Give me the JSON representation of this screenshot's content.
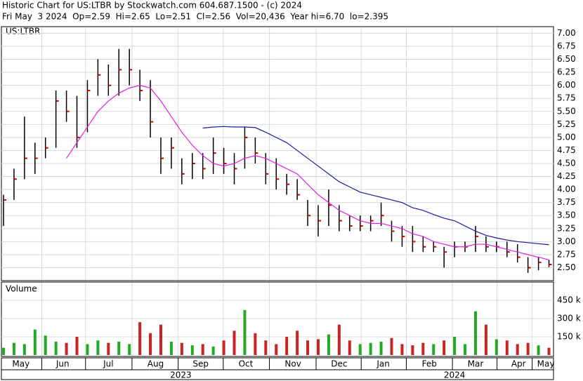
{
  "chart_data": {
    "type": "ohlc",
    "title": "Historic Chart for US:LTBR by Stockwatch.com 604.687.1500 - (c) 2024",
    "subtitle": "Fri May  3 2024  Op=2.59  Hi=2.65  Lo=2.51  Cl=2.56  Vol=20,436  Year hi=6.70  lo=2.395",
    "symbol": "US:LTBR",
    "volume_label": "Volume",
    "x": [
      0,
      1,
      2,
      3,
      4,
      5,
      6,
      7,
      8,
      9,
      10,
      11,
      12,
      13,
      14,
      15,
      16,
      17,
      18,
      19,
      20,
      21,
      22,
      23,
      24,
      25,
      26,
      27,
      28,
      29,
      30,
      31,
      32,
      33,
      34,
      35,
      36,
      37,
      38,
      39,
      40,
      41,
      42,
      43,
      44,
      45,
      46,
      47,
      48,
      49,
      50,
      51,
      52
    ],
    "xlim": [
      -0.2,
      52.3
    ],
    "xticks": [
      {
        "value": 1.66,
        "label": "May"
      },
      {
        "value": 5.64,
        "label": "Jun"
      },
      {
        "value": 10.0,
        "label": "Jul"
      },
      {
        "value": 14.5,
        "label": "Aug"
      },
      {
        "value": 18.8,
        "label": "Sep"
      },
      {
        "value": 23.1,
        "label": "Oct"
      },
      {
        "value": 27.6,
        "label": "Nov"
      },
      {
        "value": 32.0,
        "label": "Dec"
      },
      {
        "value": 36.2,
        "label": "Jan"
      },
      {
        "value": 40.6,
        "label": "Feb"
      },
      {
        "value": 45.0,
        "label": "Mar"
      },
      {
        "value": 49.1,
        "label": "Apr"
      },
      {
        "value": 51.7,
        "label": "May"
      }
    ],
    "years": [
      {
        "value": 16.9,
        "label": "2023"
      },
      {
        "value": 43.0,
        "label": "2024"
      }
    ],
    "high": [
      3.9,
      4.4,
      5.4,
      4.9,
      5.0,
      5.9,
      5.9,
      5.8,
      6.1,
      6.5,
      6.4,
      6.7,
      6.7,
      6.3,
      6.1,
      5.0,
      5.0,
      4.6,
      4.7,
      4.7,
      5.0,
      4.8,
      4.7,
      5.2,
      5.0,
      4.7,
      4.6,
      4.3,
      4.2,
      3.8,
      3.7,
      4.0,
      3.7,
      3.5,
      3.5,
      3.5,
      3.75,
      3.4,
      3.3,
      3.3,
      3.1,
      3.0,
      2.9,
      3.0,
      3.0,
      3.3,
      3.1,
      3.0,
      3.0,
      2.95,
      2.7,
      2.7,
      2.65
    ],
    "low": [
      3.3,
      3.8,
      4.2,
      4.3,
      4.6,
      4.8,
      5.3,
      4.8,
      5.1,
      5.8,
      5.8,
      5.8,
      6.0,
      5.7,
      5.0,
      4.3,
      4.4,
      4.1,
      4.2,
      4.2,
      4.3,
      4.3,
      4.1,
      4.4,
      4.5,
      4.1,
      4.0,
      3.9,
      3.8,
      3.3,
      3.1,
      3.3,
      3.2,
      3.2,
      3.2,
      3.2,
      3.3,
      3.0,
      2.9,
      2.8,
      2.8,
      2.8,
      2.5,
      2.7,
      2.8,
      2.8,
      2.8,
      2.8,
      2.7,
      2.6,
      2.4,
      2.45,
      2.51
    ],
    "close": [
      3.8,
      4.2,
      4.6,
      4.6,
      4.8,
      5.7,
      5.5,
      5.0,
      5.9,
      6.2,
      6.0,
      6.3,
      6.3,
      5.9,
      5.3,
      4.6,
      4.8,
      4.3,
      4.5,
      4.4,
      4.7,
      4.5,
      4.4,
      5.0,
      4.7,
      4.3,
      4.2,
      4.1,
      3.9,
      3.5,
      3.4,
      3.7,
      3.4,
      3.3,
      3.3,
      3.4,
      3.5,
      3.2,
      3.1,
      3.0,
      2.9,
      2.9,
      2.8,
      2.9,
      2.9,
      3.1,
      2.9,
      2.9,
      2.8,
      2.7,
      2.5,
      2.6,
      2.56
    ],
    "volume": [
      60000,
      100000,
      90000,
      210000,
      160000,
      110000,
      100000,
      150000,
      90000,
      120000,
      100000,
      110000,
      90000,
      270000,
      180000,
      250000,
      110000,
      100000,
      80000,
      90000,
      70000,
      120000,
      200000,
      370000,
      180000,
      120000,
      90000,
      150000,
      200000,
      120000,
      130000,
      170000,
      250000,
      120000,
      90000,
      100000,
      110000,
      140000,
      90000,
      80000,
      100000,
      90000,
      120000,
      150000,
      90000,
      360000,
      250000,
      130000,
      120000,
      90000,
      100000,
      80000,
      60000
    ],
    "ma_series": [
      {
        "name": "20-day",
        "color": "#e020e0",
        "values": [
          null,
          null,
          null,
          null,
          null,
          null,
          4.6,
          4.9,
          5.2,
          5.5,
          5.7,
          5.85,
          5.95,
          6.0,
          5.95,
          5.7,
          5.4,
          5.1,
          4.85,
          4.65,
          4.5,
          4.45,
          4.5,
          4.6,
          4.65,
          4.6,
          4.5,
          4.4,
          4.3,
          4.1,
          3.9,
          3.75,
          3.6,
          3.5,
          3.4,
          3.35,
          3.35,
          3.3,
          3.25,
          3.15,
          3.1,
          3.0,
          2.95,
          2.9,
          2.9,
          2.95,
          2.95,
          2.9,
          2.85,
          2.8,
          2.75,
          2.7,
          2.65
        ]
      },
      {
        "name": "50-day",
        "color": "#1a1aa0",
        "values": [
          null,
          null,
          null,
          null,
          null,
          null,
          null,
          null,
          null,
          null,
          null,
          null,
          null,
          null,
          null,
          null,
          null,
          null,
          null,
          5.18,
          5.2,
          5.21,
          5.2,
          5.2,
          5.19,
          5.1,
          5.0,
          4.9,
          4.75,
          4.6,
          4.45,
          4.3,
          4.15,
          4.05,
          3.95,
          3.9,
          3.85,
          3.8,
          3.75,
          3.65,
          3.6,
          3.52,
          3.45,
          3.4,
          3.3,
          3.2,
          3.12,
          3.07,
          3.03,
          3.0,
          2.98,
          2.96,
          2.94
        ]
      }
    ],
    "ylim": [
      2.25,
      7.1
    ],
    "yticks": [
      {
        "value": 7.0,
        "label": "7.00"
      },
      6.75,
      {
        "value": 6.5,
        "label": "6.50"
      },
      6.25,
      {
        "value": 6.0,
        "label": "6.00"
      },
      5.75,
      {
        "value": 5.5,
        "label": "5.50"
      },
      5.25,
      {
        "value": 5.0,
        "label": "5.00"
      },
      4.75,
      {
        "value": 4.5,
        "label": "4.50"
      },
      4.25,
      {
        "value": 4.0,
        "label": "4.00"
      },
      3.75,
      {
        "value": 3.5,
        "label": "3.50"
      },
      3.25,
      {
        "value": 3.0,
        "label": "3.00"
      },
      2.75,
      {
        "value": 2.5,
        "label": "2.50"
      }
    ],
    "vlim": [
      0,
      600000
    ],
    "vticks": [
      {
        "value": 450000,
        "label": "450 k"
      },
      {
        "value": 300000,
        "label": "300 k"
      },
      {
        "value": 150000,
        "label": "150 k"
      }
    ],
    "bar_color": "#000000",
    "close_color": "#cc0000",
    "up_color": "#22aa22",
    "down_color": "#cc2222",
    "grid": true
  }
}
